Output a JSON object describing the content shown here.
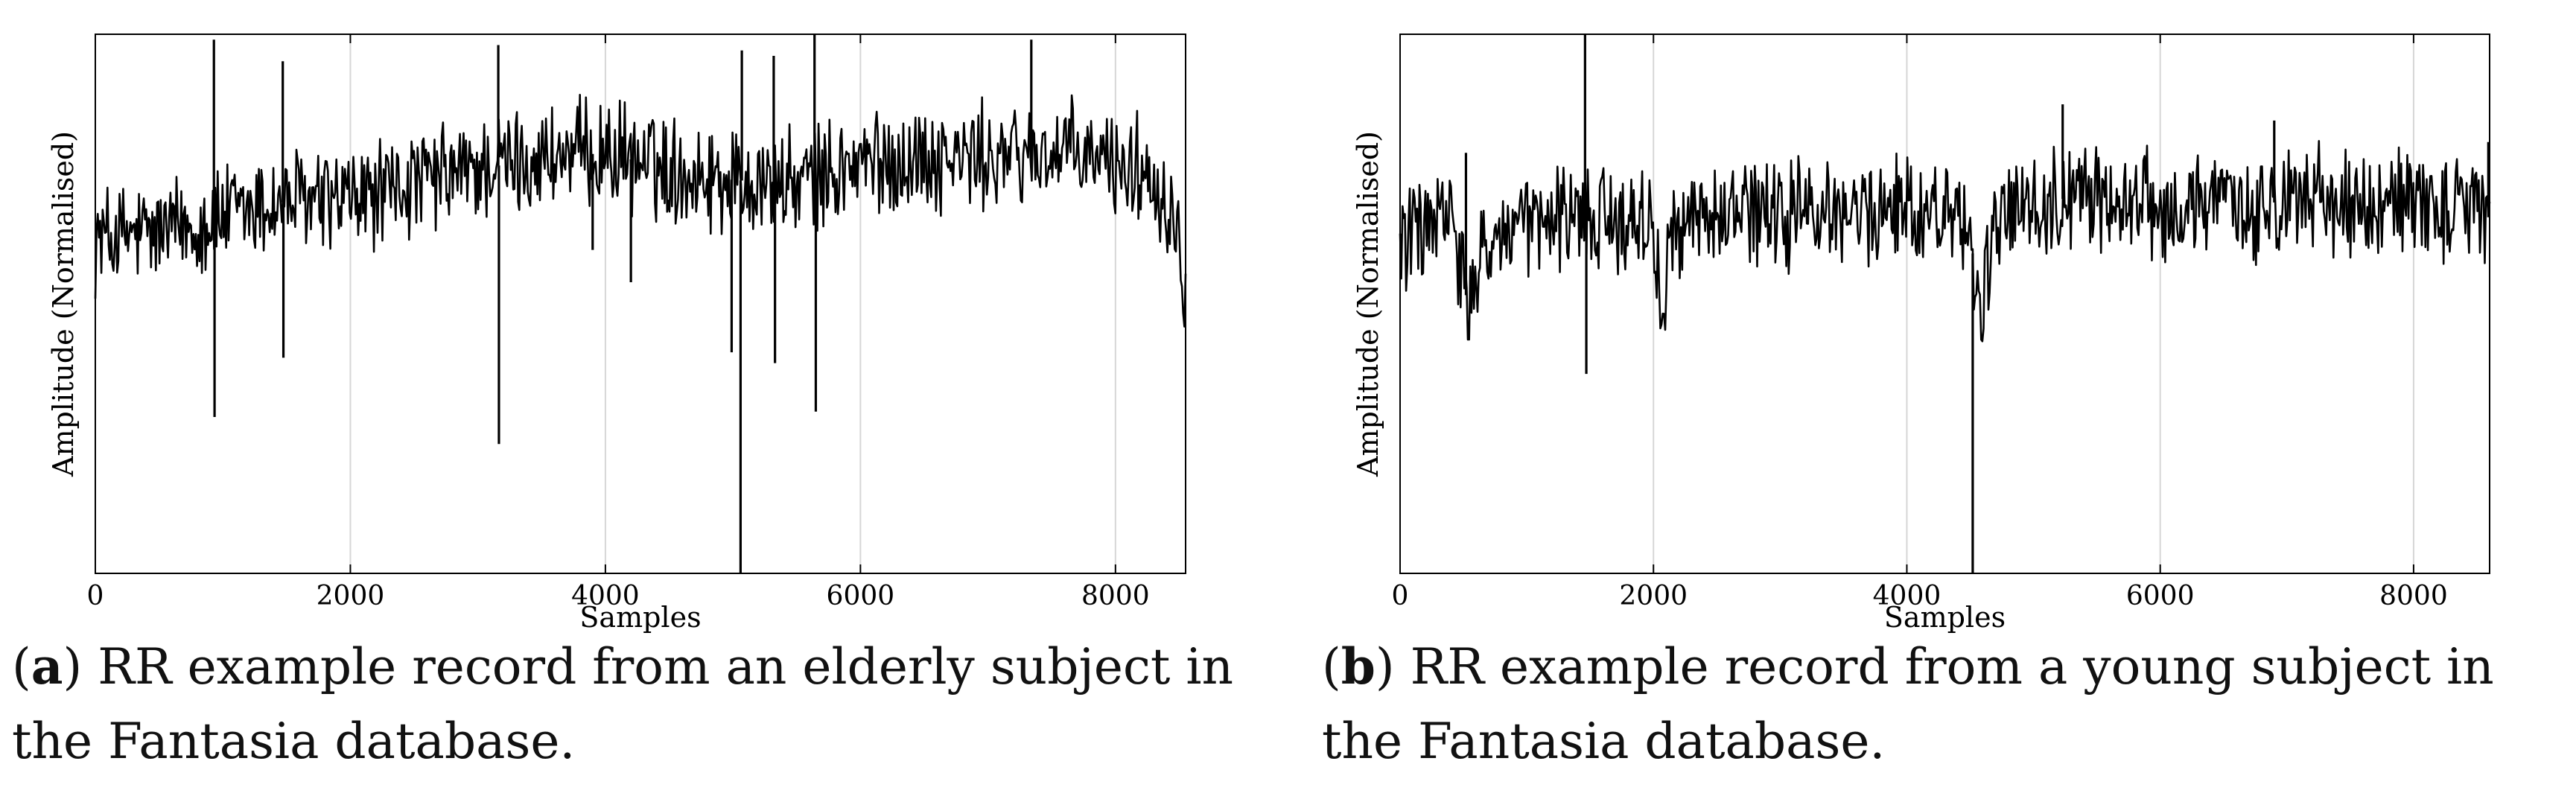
{
  "captions": [
    {
      "letter": "a",
      "text": " RR example record from an elderly subject in the Fantasia database."
    },
    {
      "letter": "b",
      "text": " RR example record from a young subject in the Fantasia database."
    }
  ],
  "chart_data": [
    {
      "type": "line",
      "title": "",
      "xlabel": "Samples",
      "ylabel": "Amplitude (Normalised)",
      "xlim": [
        0,
        8550
      ],
      "ylim": [
        0,
        1
      ],
      "xticks": [
        0,
        2000,
        4000,
        6000,
        8000
      ],
      "yticks_shown": false,
      "grid": "vertical",
      "series": [
        {
          "points": [
            [
              0,
              0.62
            ],
            [
              500,
              0.63
            ],
            [
              1000,
              0.66
            ],
            [
              1500,
              0.69
            ],
            [
              2000,
              0.69
            ],
            [
              2500,
              0.72
            ],
            [
              3000,
              0.75
            ],
            [
              3500,
              0.77
            ],
            [
              4000,
              0.78
            ],
            [
              4500,
              0.75
            ],
            [
              5000,
              0.73
            ],
            [
              5500,
              0.72
            ],
            [
              6000,
              0.76
            ],
            [
              6500,
              0.77
            ],
            [
              7000,
              0.77
            ],
            [
              7500,
              0.78
            ],
            [
              8000,
              0.76
            ],
            [
              8300,
              0.74
            ],
            [
              8500,
              0.64
            ],
            [
              8550,
              0.51
            ]
          ],
          "spikes": [
            [
              930,
              0.99
            ],
            [
              935,
              0.29
            ],
            [
              1470,
              0.95
            ],
            [
              1475,
              0.4
            ],
            [
              3160,
              0.98
            ],
            [
              3165,
              0.24
            ],
            [
              4990,
              0.41
            ],
            [
              5060,
              0.0
            ],
            [
              5070,
              0.97
            ],
            [
              5320,
              0.96
            ],
            [
              5330,
              0.39
            ],
            [
              5640,
              1.0
            ],
            [
              5650,
              0.3
            ],
            [
              7340,
              0.99
            ],
            [
              4200,
              0.54
            ],
            [
              3900,
              0.6
            ]
          ]
        }
      ]
    },
    {
      "type": "line",
      "title": "",
      "xlabel": "Samples",
      "ylabel": "Amplitude (Normalised)",
      "xlim": [
        0,
        8600
      ],
      "ylim": [
        0,
        1
      ],
      "xticks": [
        0,
        2000,
        4000,
        6000,
        8000
      ],
      "yticks_shown": false,
      "grid": "vertical",
      "series": [
        {
          "points": [
            [
              0,
              0.62
            ],
            [
              400,
              0.66
            ],
            [
              550,
              0.48
            ],
            [
              700,
              0.62
            ],
            [
              1000,
              0.64
            ],
            [
              1500,
              0.66
            ],
            [
              2000,
              0.65
            ],
            [
              2050,
              0.5
            ],
            [
              2200,
              0.66
            ],
            [
              3000,
              0.66
            ],
            [
              3500,
              0.67
            ],
            [
              4000,
              0.68
            ],
            [
              4500,
              0.66
            ],
            [
              4560,
              0.46
            ],
            [
              4700,
              0.64
            ],
            [
              5000,
              0.69
            ],
            [
              5500,
              0.7
            ],
            [
              6000,
              0.68
            ],
            [
              6500,
              0.68
            ],
            [
              7000,
              0.69
            ],
            [
              7500,
              0.69
            ],
            [
              8000,
              0.69
            ],
            [
              8600,
              0.66
            ]
          ],
          "spikes": [
            [
              1460,
              1.0
            ],
            [
              1470,
              0.37
            ],
            [
              4520,
              0.0
            ],
            [
              5230,
              0.87
            ],
            [
              6900,
              0.84
            ],
            [
              8590,
              0.8
            ],
            [
              520,
              0.78
            ]
          ]
        }
      ]
    }
  ]
}
